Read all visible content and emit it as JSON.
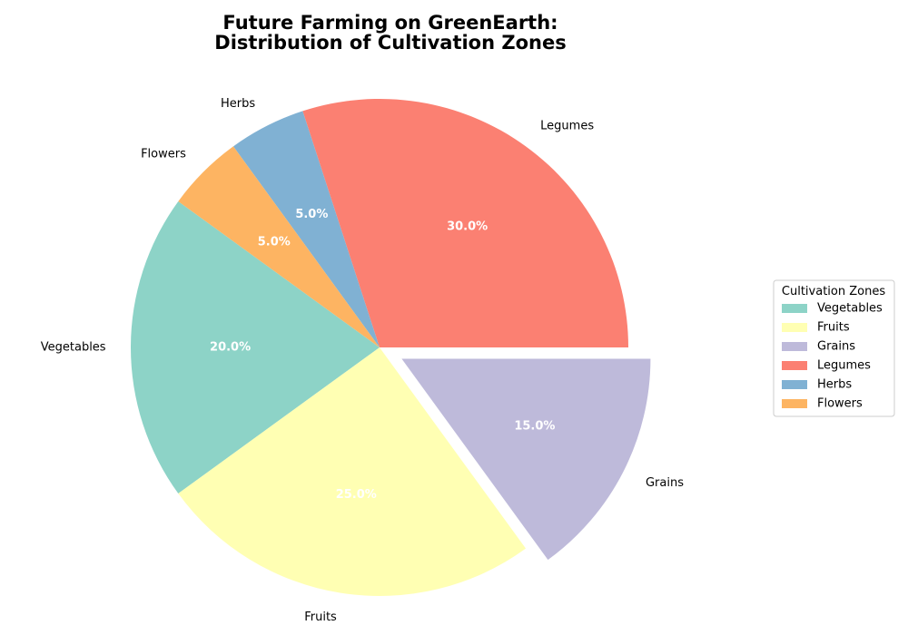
{
  "chart_data": {
    "type": "pie",
    "title_lines": [
      "Future Farming on GreenEarth:",
      "Distribution of Cultivation Zones"
    ],
    "categories": [
      "Vegetables",
      "Fruits",
      "Grains",
      "Legumes",
      "Herbs",
      "Flowers"
    ],
    "values": [
      20,
      25,
      15,
      30,
      5,
      5
    ],
    "percent_labels": [
      "20.0%",
      "25.0%",
      "15.0%",
      "30.0%",
      "5.0%",
      "5.0%"
    ],
    "colors": [
      "#8dd3c7",
      "#ffffb3",
      "#bebada",
      "#fb8072",
      "#80b1d3",
      "#fdb462"
    ],
    "exploded": [
      "Grains"
    ],
    "start_angle_deg": 144,
    "direction": "counterclockwise",
    "legend": {
      "title": "Cultivation Zones",
      "placement": "center-right",
      "entries": [
        "Vegetables",
        "Fruits",
        "Grains",
        "Legumes",
        "Herbs",
        "Flowers"
      ]
    }
  }
}
